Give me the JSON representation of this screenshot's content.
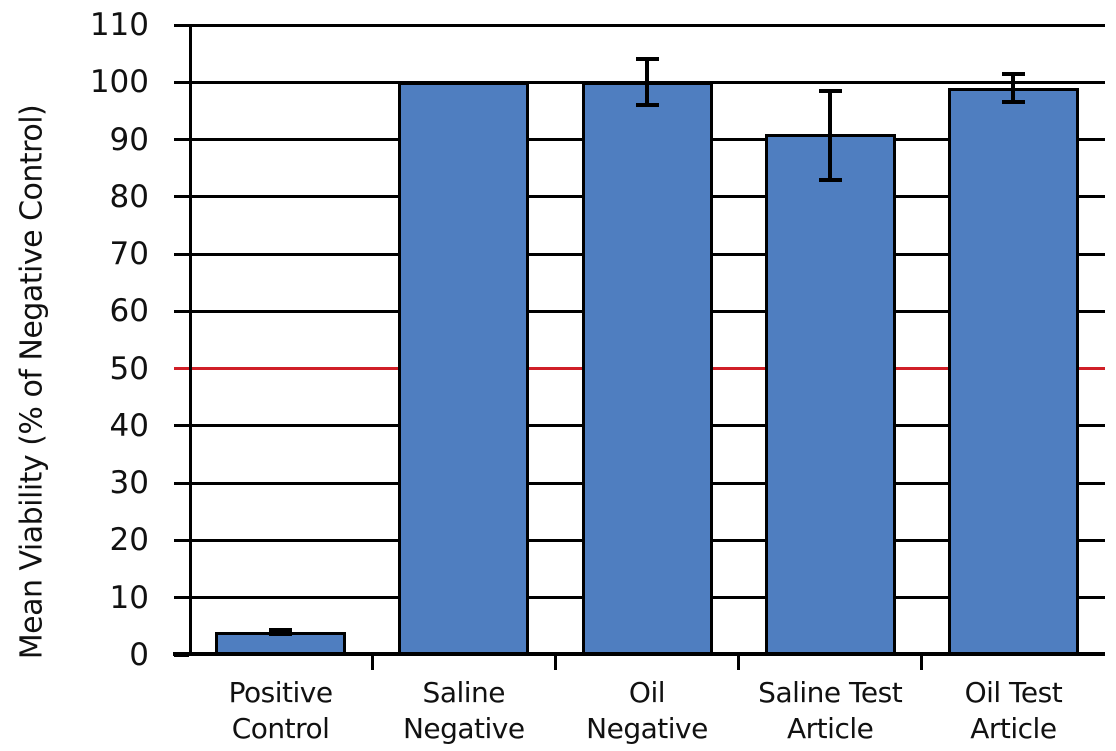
{
  "chart_data": {
    "type": "bar",
    "title": "",
    "ylabel": "Mean Viability (% of Negative Control)",
    "xlabel": "",
    "ylim": [
      0,
      110
    ],
    "yticks": [
      0,
      10,
      20,
      30,
      40,
      50,
      60,
      70,
      80,
      90,
      100,
      110
    ],
    "grid": "horizontal-black",
    "legend": "none",
    "categories": [
      "Positive\nControl",
      "Saline\nNegative",
      "Oil\nNegative",
      "Saline Test\nArticle",
      "Oil Test\nArticle"
    ],
    "values": [
      4,
      100,
      100,
      91,
      99
    ],
    "error_plus": [
      0.4,
      0,
      4,
      7.5,
      2.5
    ],
    "error_minus": [
      0.4,
      0,
      4,
      8,
      2.5
    ],
    "threshold_line": {
      "value": 50,
      "color": "#d01f27"
    },
    "bar_fill": "#4F7EC0",
    "bar_border": "#000000",
    "axis_color": "#000000"
  }
}
